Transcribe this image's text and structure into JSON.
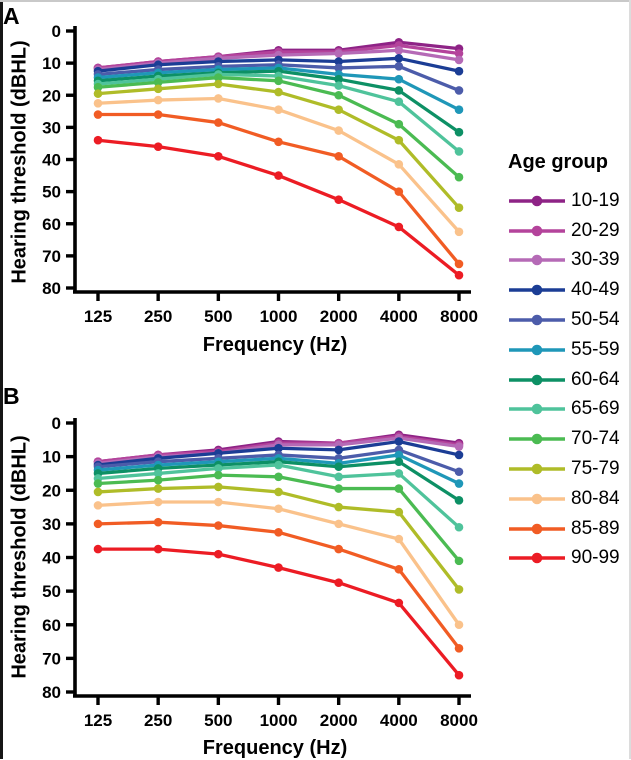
{
  "figure": {
    "panels": [
      {
        "label": "A"
      },
      {
        "label": "B"
      }
    ],
    "legend": {
      "title": "Age group"
    }
  },
  "chart_data": [
    {
      "type": "line",
      "panel": "A",
      "title": "",
      "xlabel": "Frequency (Hz)",
      "ylabel": "Hearing threshold (dBHL)",
      "x_categories": [
        "125",
        "250",
        "500",
        "1000",
        "2000",
        "4000",
        "8000"
      ],
      "yticks": [
        0,
        10,
        20,
        30,
        40,
        50,
        60,
        70,
        80
      ],
      "ylim": [
        0,
        80
      ],
      "y_axis_inverted": true,
      "grid": false,
      "legend_position": "right",
      "series": [
        {
          "name": "10-19",
          "color": "#8E2386",
          "values": [
            11.5,
            9.5,
            8,
            6,
            6,
            3.5,
            5.5
          ]
        },
        {
          "name": "20-29",
          "color": "#B4439B",
          "values": [
            11.5,
            9.5,
            8,
            6.5,
            6.5,
            4.5,
            7
          ]
        },
        {
          "name": "30-39",
          "color": "#B56AB6",
          "values": [
            12,
            10,
            8.5,
            7.5,
            7,
            6,
            9
          ]
        },
        {
          "name": "40-49",
          "color": "#1B3D95",
          "values": [
            12.5,
            10.5,
            9.5,
            9,
            9.5,
            8.5,
            12.5
          ]
        },
        {
          "name": "50-54",
          "color": "#4C5CAA",
          "values": [
            13.5,
            12,
            11,
            10.5,
            11.5,
            11,
            18.5
          ]
        },
        {
          "name": "55-59",
          "color": "#1F97B8",
          "values": [
            14.5,
            13,
            12,
            11.5,
            13.5,
            15,
            24.5
          ]
        },
        {
          "name": "60-64",
          "color": "#0D9065",
          "values": [
            15.5,
            14,
            13,
            12.5,
            15,
            18.5,
            31.5
          ]
        },
        {
          "name": "65-69",
          "color": "#4FC39B",
          "values": [
            16.5,
            15,
            13.5,
            14,
            17,
            22,
            37.5
          ]
        },
        {
          "name": "70-74",
          "color": "#4BBB52",
          "values": [
            17.5,
            16,
            14.5,
            15.5,
            20,
            29,
            45.5
          ]
        },
        {
          "name": "75-79",
          "color": "#AFBC28",
          "values": [
            19.5,
            18,
            16.5,
            19,
            24.5,
            34,
            55
          ]
        },
        {
          "name": "80-84",
          "color": "#FAC28B",
          "values": [
            22.5,
            21.5,
            21,
            24.5,
            31,
            41.5,
            62.5
          ]
        },
        {
          "name": "85-89",
          "color": "#F15C24",
          "values": [
            26,
            26,
            28.5,
            34.5,
            39,
            50,
            72.5
          ]
        },
        {
          "name": "90-99",
          "color": "#EC1C24",
          "values": [
            34,
            36,
            39,
            45,
            52.5,
            61,
            76
          ]
        }
      ]
    },
    {
      "type": "line",
      "panel": "B",
      "title": "",
      "xlabel": "Frequency (Hz)",
      "ylabel": "Hearing threshold (dBHL)",
      "x_categories": [
        "125",
        "250",
        "500",
        "1000",
        "2000",
        "4000",
        "8000"
      ],
      "yticks": [
        0,
        10,
        20,
        30,
        40,
        50,
        60,
        70,
        80
      ],
      "ylim": [
        0,
        80
      ],
      "y_axis_inverted": true,
      "grid": false,
      "legend_position": "right",
      "series": [
        {
          "name": "10-19",
          "color": "#8E2386",
          "values": [
            11.5,
            9.5,
            8,
            5.5,
            6,
            3.5,
            6
          ]
        },
        {
          "name": "20-29",
          "color": "#B4439B",
          "values": [
            11.5,
            9.5,
            8.5,
            6,
            6,
            4,
            6.5
          ]
        },
        {
          "name": "30-39",
          "color": "#B56AB6",
          "values": [
            12,
            10,
            9,
            6.5,
            6.5,
            4.5,
            7
          ]
        },
        {
          "name": "40-49",
          "color": "#1B3D95",
          "values": [
            12.5,
            10.5,
            9,
            7.5,
            8,
            5.5,
            9.5
          ]
        },
        {
          "name": "50-54",
          "color": "#4C5CAA",
          "values": [
            13,
            11.5,
            10.5,
            9.5,
            10.5,
            8,
            14.5
          ]
        },
        {
          "name": "55-59",
          "color": "#1F97B8",
          "values": [
            14,
            12.5,
            11.5,
            10.5,
            12,
            9.5,
            18
          ]
        },
        {
          "name": "60-64",
          "color": "#0D9065",
          "values": [
            15,
            13.5,
            12.5,
            11.5,
            13,
            11.5,
            23
          ]
        },
        {
          "name": "65-69",
          "color": "#4FC39B",
          "values": [
            16.5,
            15,
            13.5,
            12.5,
            16,
            15,
            31
          ]
        },
        {
          "name": "70-74",
          "color": "#4BBB52",
          "values": [
            18,
            17,
            15.5,
            16,
            19.5,
            19.5,
            41
          ]
        },
        {
          "name": "75-79",
          "color": "#AFBC28",
          "values": [
            20.5,
            19.5,
            19,
            20.5,
            25,
            26.5,
            49.5
          ]
        },
        {
          "name": "80-84",
          "color": "#FAC28B",
          "values": [
            24.5,
            23.5,
            23.5,
            25.5,
            30,
            34.5,
            60
          ]
        },
        {
          "name": "85-89",
          "color": "#F15C24",
          "values": [
            30,
            29.5,
            30.5,
            32.5,
            37.5,
            43.5,
            67
          ]
        },
        {
          "name": "90-99",
          "color": "#EC1C24",
          "values": [
            37.5,
            37.5,
            39,
            43,
            47.5,
            53.5,
            75
          ]
        }
      ]
    }
  ]
}
